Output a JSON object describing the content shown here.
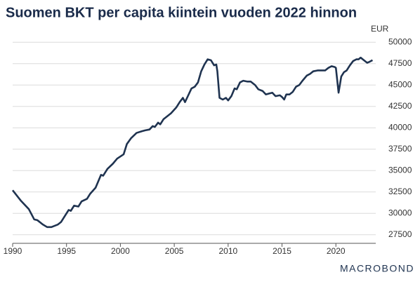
{
  "chart_data": {
    "type": "line",
    "title": "Suomen BKT per capita kiintein vuoden 2022 hinnon",
    "y_unit": "EUR",
    "logo": "MACROBOND",
    "series": [
      {
        "name": "BKT per capita",
        "color": "#1f3350",
        "x": [
          1990.0,
          1990.5,
          1990.75,
          1991.5,
          1992.0,
          1992.3,
          1992.8,
          1993.2,
          1993.6,
          1994.2,
          1994.5,
          1994.9,
          1995.2,
          1995.4,
          1995.7,
          1996.1,
          1996.4,
          1996.9,
          1997.2,
          1997.7,
          1998.2,
          1998.4,
          1998.8,
          1999.3,
          1999.7,
          2000.3,
          2000.6,
          2001.0,
          2001.5,
          2002.0,
          2002.3,
          2002.7,
          2003.0,
          2003.2,
          2003.5,
          2003.7,
          2004.0,
          2004.3,
          2004.7,
          2005.2,
          2005.5,
          2005.8,
          2006.0,
          2006.3,
          2006.6,
          2006.9,
          2007.2,
          2007.5,
          2007.8,
          2008.1,
          2008.4,
          2008.7,
          2008.9,
          2009.0,
          2009.2,
          2009.5,
          2009.8,
          2010.0,
          2010.3,
          2010.6,
          2010.8,
          2011.1,
          2011.4,
          2011.8,
          2012.1,
          2012.5,
          2012.8,
          2013.2,
          2013.5,
          2013.8,
          2014.1,
          2014.4,
          2014.8,
          2015.0,
          2015.2,
          2015.4,
          2015.7,
          2016.0,
          2016.3,
          2016.6,
          2016.9,
          2017.3,
          2017.6,
          2017.9,
          2018.3,
          2018.7,
          2019.0,
          2019.3,
          2019.6,
          2019.9,
          2020.0,
          2020.25,
          2020.5,
          2020.75,
          2021.0,
          2021.3,
          2021.6,
          2021.9,
          2022.1,
          2022.3,
          2022.6,
          2022.9,
          2023.1,
          2023.4
        ],
        "values": [
          32700,
          31900,
          31500,
          30500,
          29300,
          29200,
          28700,
          28400,
          28400,
          28700,
          29000,
          29800,
          30400,
          30300,
          30900,
          30800,
          31400,
          31700,
          32300,
          33000,
          34500,
          34400,
          35200,
          35800,
          36400,
          36900,
          38100,
          38800,
          39400,
          39600,
          39700,
          39800,
          40200,
          40100,
          40600,
          40400,
          41000,
          41300,
          41700,
          42400,
          43000,
          43500,
          43000,
          43800,
          44600,
          44800,
          45300,
          46600,
          47400,
          48000,
          47900,
          47300,
          47400,
          46600,
          43500,
          43300,
          43500,
          43200,
          43700,
          44600,
          44500,
          45300,
          45500,
          45400,
          45400,
          45000,
          44500,
          44300,
          43900,
          44000,
          44100,
          43700,
          43800,
          43600,
          43300,
          43900,
          43900,
          44200,
          44800,
          45000,
          45500,
          46100,
          46300,
          46600,
          46700,
          46700,
          46700,
          47000,
          47200,
          47100,
          47000,
          44100,
          46000,
          46500,
          46700,
          47300,
          47800,
          48000,
          48000,
          48200,
          47900,
          47600,
          47700,
          47900
        ]
      }
    ],
    "xlim": [
      1990,
      2023.7
    ],
    "xticks": [
      1990,
      1995,
      2000,
      2005,
      2010,
      2015,
      2020
    ],
    "ylim": [
      26500,
      51000
    ],
    "yticks": [
      27500,
      30000,
      32500,
      35000,
      37500,
      40000,
      42500,
      45000,
      47500,
      50000
    ],
    "grid": true
  }
}
